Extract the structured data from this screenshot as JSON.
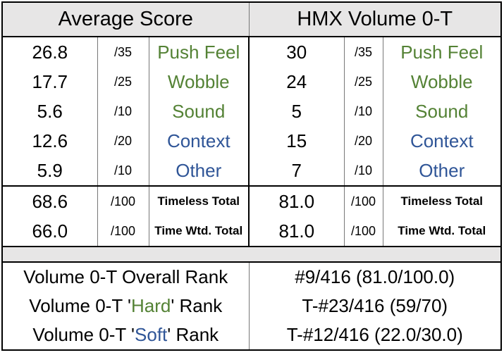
{
  "header": {
    "left_title": "Average Score",
    "right_title": "HMX Volume 0-T"
  },
  "categories": [
    {
      "avg": "26.8",
      "avg_denom": "/35",
      "label": "Push Feel",
      "color": "#548235",
      "val": "30",
      "val_denom": "/35"
    },
    {
      "avg": "17.7",
      "avg_denom": "/25",
      "label": "Wobble",
      "color": "#548235",
      "val": "24",
      "val_denom": "/25"
    },
    {
      "avg": "5.6",
      "avg_denom": "/10",
      "label": "Sound",
      "color": "#548235",
      "val": "5",
      "val_denom": "/10"
    },
    {
      "avg": "12.6",
      "avg_denom": "/20",
      "label": "Context",
      "color": "#2f5597",
      "val": "15",
      "val_denom": "/20"
    },
    {
      "avg": "5.9",
      "avg_denom": "/10",
      "label": "Other",
      "color": "#2f5597",
      "val": "7",
      "val_denom": "/10"
    }
  ],
  "totals": [
    {
      "avg": "68.6",
      "avg_denom": "/100",
      "label": "Timeless Total",
      "val": "81.0",
      "val_denom": "/100"
    },
    {
      "avg": "66.0",
      "avg_denom": "/100",
      "label": "Time Wtd. Total",
      "val": "81.0",
      "val_denom": "/100"
    }
  ],
  "ranks": {
    "overall_label": "Volume 0-T Overall Rank",
    "overall_value": "#9/416 (81.0/100.0)",
    "hard_prefix": "Volume 0-T '",
    "hard_word": "Hard",
    "hard_suffix": "' Rank",
    "hard_value": "T-#23/416 (59/70)",
    "soft_prefix": "Volume 0-T '",
    "soft_word": "Soft",
    "soft_suffix": "' Rank",
    "soft_value": "T-#12/416 (22.0/30.0)"
  }
}
